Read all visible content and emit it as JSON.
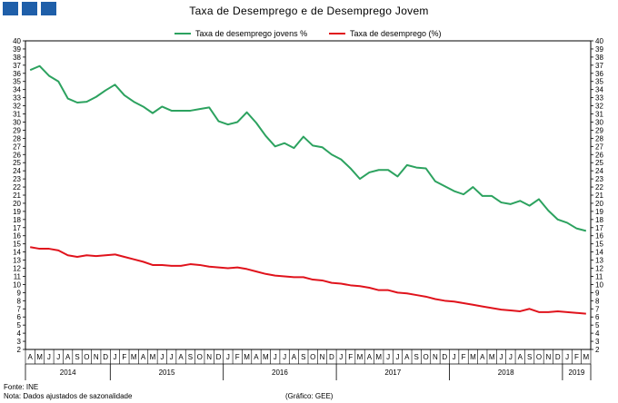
{
  "page": {
    "title": "Taxa de Desemprego e de Desemprego Jovem",
    "source": "Fonte: INE",
    "note": "Nota: Dados ajustados de sazonalidade",
    "credit": "(Gráfico: GEE)"
  },
  "chart_data": {
    "type": "line",
    "title": "Taxa de Desemprego e de Desemprego Jovem",
    "ylim": [
      2,
      40
    ],
    "y_ticks": [
      2,
      3,
      4,
      5,
      6,
      7,
      8,
      9,
      10,
      11,
      12,
      13,
      14,
      15,
      16,
      17,
      18,
      19,
      20,
      21,
      22,
      23,
      24,
      25,
      26,
      27,
      28,
      29,
      30,
      31,
      32,
      33,
      34,
      35,
      36,
      37,
      38,
      39,
      40
    ],
    "y_axes": [
      "left",
      "right"
    ],
    "grid": false,
    "legend_position": "top",
    "categories": [
      "A",
      "M",
      "J",
      "J",
      "A",
      "S",
      "O",
      "N",
      "D",
      "J",
      "F",
      "M",
      "A",
      "M",
      "J",
      "J",
      "A",
      "S",
      "O",
      "N",
      "D",
      "J",
      "F",
      "M",
      "A",
      "M",
      "J",
      "J",
      "A",
      "S",
      "O",
      "N",
      "D",
      "J",
      "F",
      "M",
      "A",
      "M",
      "J",
      "J",
      "A",
      "S",
      "O",
      "N",
      "D",
      "J",
      "F",
      "M",
      "A",
      "M",
      "J",
      "J",
      "A",
      "S",
      "O",
      "N",
      "D",
      "J",
      "F",
      "M"
    ],
    "year_labels": [
      {
        "label": "2014",
        "start": 0,
        "end": 8
      },
      {
        "label": "2015",
        "start": 9,
        "end": 20
      },
      {
        "label": "2016",
        "start": 21,
        "end": 32
      },
      {
        "label": "2017",
        "start": 33,
        "end": 44
      },
      {
        "label": "2018",
        "start": 45,
        "end": 56
      },
      {
        "label": "2019",
        "start": 57,
        "end": 59
      }
    ],
    "series": [
      {
        "name": "Taxa de desemprego jovens %",
        "color": "#2ca25f",
        "values": [
          36.4,
          36.9,
          35.7,
          35.0,
          32.9,
          32.4,
          32.5,
          33.1,
          33.9,
          34.6,
          33.3,
          32.5,
          31.9,
          31.1,
          31.9,
          31.4,
          31.4,
          31.4,
          31.6,
          31.8,
          30.1,
          29.7,
          30.0,
          31.2,
          29.9,
          28.3,
          27.0,
          27.4,
          26.8,
          28.2,
          27.1,
          26.9,
          26.0,
          25.4,
          24.3,
          23.0,
          23.8,
          24.1,
          24.1,
          23.3,
          24.7,
          24.4,
          24.3,
          22.7,
          22.1,
          21.5,
          21.1,
          22.0,
          20.9,
          20.9,
          20.1,
          19.9,
          20.3,
          19.7,
          20.5,
          19.1,
          18.0,
          17.6,
          16.9,
          16.6
        ]
      },
      {
        "name": "Taxa de desemprego (%)",
        "color": "#e0131c",
        "values": [
          14.6,
          14.4,
          14.4,
          14.2,
          13.6,
          13.4,
          13.6,
          13.5,
          13.6,
          13.7,
          13.4,
          13.1,
          12.8,
          12.4,
          12.4,
          12.3,
          12.3,
          12.5,
          12.4,
          12.2,
          12.1,
          12.0,
          12.1,
          11.9,
          11.6,
          11.3,
          11.1,
          11.0,
          10.9,
          10.9,
          10.6,
          10.5,
          10.2,
          10.1,
          9.9,
          9.8,
          9.6,
          9.3,
          9.3,
          9.0,
          8.9,
          8.7,
          8.5,
          8.2,
          8.0,
          7.9,
          7.7,
          7.5,
          7.3,
          7.1,
          6.9,
          6.8,
          6.7,
          7.0,
          6.6,
          6.6,
          6.7,
          6.6,
          6.5,
          6.4
        ]
      }
    ]
  }
}
